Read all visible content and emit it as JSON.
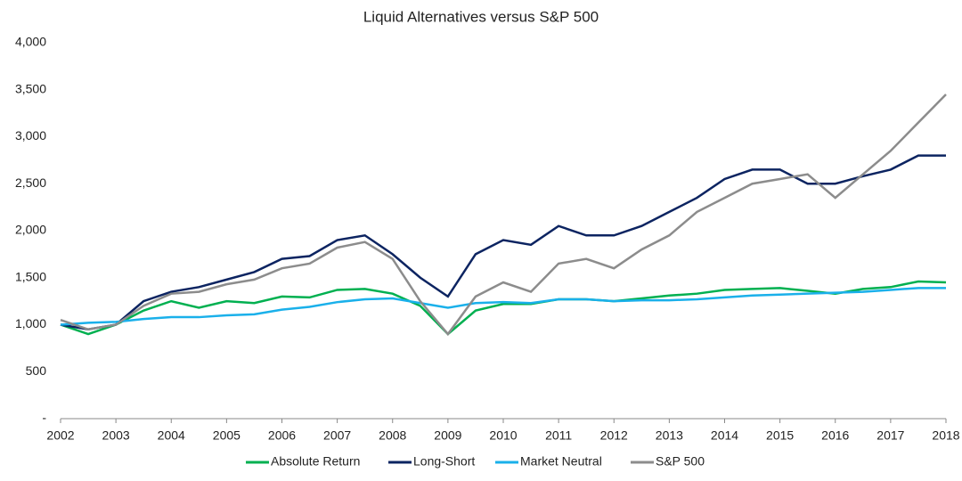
{
  "chart_data": {
    "type": "line",
    "title": "Liquid Alternatives versus S&P 500",
    "x": [
      2002,
      2002.5,
      2003,
      2003.5,
      2004,
      2004.5,
      2005,
      2005.5,
      2006,
      2006.5,
      2007,
      2007.5,
      2008,
      2008.5,
      2009,
      2009.5,
      2010,
      2010.5,
      2011,
      2011.5,
      2012,
      2012.5,
      2013,
      2013.5,
      2014,
      2014.5,
      2015,
      2015.5,
      2016,
      2016.5,
      2017,
      2017.5,
      2018
    ],
    "series": [
      {
        "name": "Absolute Return",
        "color": "#00b050",
        "values": [
          1000,
          900,
          1000,
          1150,
          1250,
          1180,
          1250,
          1230,
          1300,
          1290,
          1370,
          1380,
          1330,
          1200,
          900,
          1150,
          1220,
          1220,
          1270,
          1270,
          1250,
          1280,
          1310,
          1330,
          1370,
          1380,
          1390,
          1360,
          1330,
          1380,
          1400,
          1460,
          1450
        ]
      },
      {
        "name": "Long-Short",
        "color": "#0c2461",
        "values": [
          1000,
          950,
          1000,
          1250,
          1350,
          1400,
          1480,
          1560,
          1700,
          1730,
          1900,
          1950,
          1750,
          1500,
          1300,
          1750,
          1900,
          1850,
          2050,
          1950,
          1950,
          2050,
          2200,
          2350,
          2550,
          2650,
          2650,
          2500,
          2500,
          2580,
          2650,
          2800,
          2800
        ]
      },
      {
        "name": "Market Neutral",
        "color": "#1ab0ea",
        "values": [
          1000,
          1020,
          1030,
          1060,
          1080,
          1080,
          1100,
          1110,
          1160,
          1190,
          1240,
          1270,
          1280,
          1230,
          1180,
          1230,
          1240,
          1230,
          1270,
          1270,
          1250,
          1260,
          1260,
          1270,
          1290,
          1310,
          1320,
          1330,
          1340,
          1350,
          1370,
          1390,
          1390
        ]
      },
      {
        "name": "S&P 500",
        "color": "#8c8c8c",
        "values": [
          1050,
          950,
          1000,
          1200,
          1330,
          1350,
          1430,
          1480,
          1600,
          1650,
          1820,
          1880,
          1700,
          1250,
          900,
          1300,
          1450,
          1350,
          1650,
          1700,
          1600,
          1800,
          1950,
          2200,
          2350,
          2500,
          2550,
          2600,
          2350,
          2600,
          2850,
          3150,
          3450
        ]
      }
    ],
    "xlim": [
      2002,
      2018
    ],
    "xticks": [
      2002,
      2003,
      2004,
      2005,
      2006,
      2007,
      2008,
      2009,
      2010,
      2011,
      2012,
      2013,
      2014,
      2015,
      2016,
      2017,
      2018
    ],
    "ylim": [
      0,
      4000
    ],
    "yticks": [
      {
        "value": 0,
        "label": "-"
      },
      500,
      {
        "value": 1000,
        "label": "1,000"
      },
      {
        "value": 1500,
        "label": "1,500"
      },
      {
        "value": 2000,
        "label": "2,000"
      },
      {
        "value": 2500,
        "label": "2,500"
      },
      {
        "value": 3000,
        "label": "3,000"
      },
      {
        "value": 3500,
        "label": "3,500"
      },
      {
        "value": 4000,
        "label": "4,000"
      }
    ],
    "grid": false,
    "legend": "bottom"
  }
}
